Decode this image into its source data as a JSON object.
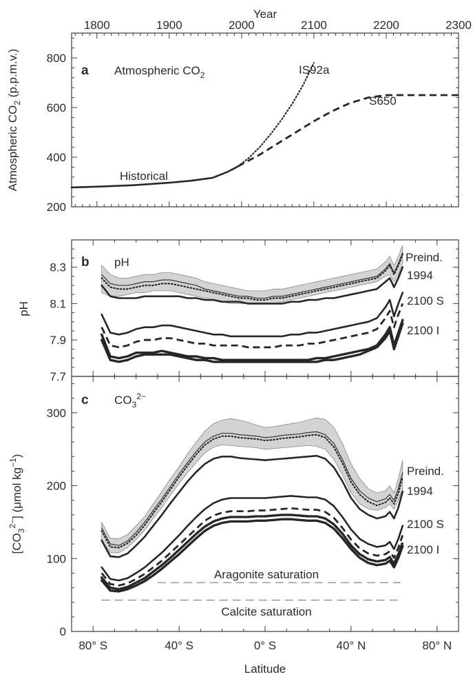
{
  "chart_data": [
    {
      "type": "line",
      "panel": "a",
      "title": "Atmospheric CO2",
      "xlabel": "Year",
      "ylabel": "Atmospheric CO2 (p.p.m.v.)",
      "xlim": [
        1765,
        2300
      ],
      "ylim": [
        200,
        900
      ],
      "xticks": [
        1800,
        1900,
        2000,
        2100,
        2200,
        2300
      ],
      "yticks": [
        200,
        400,
        600,
        800
      ],
      "grid": false,
      "series": [
        {
          "name": "Historical",
          "style": "solid",
          "x": [
            1765,
            1800,
            1850,
            1900,
            1930,
            1960,
            1980,
            1990,
            1995
          ],
          "y": [
            278,
            281,
            287,
            297,
            305,
            317,
            340,
            355,
            363
          ]
        },
        {
          "name": "IS92a",
          "style": "dotted",
          "x": [
            1995,
            2010,
            2025,
            2040,
            2055,
            2070,
            2085,
            2100
          ],
          "y": [
            363,
            397,
            440,
            492,
            550,
            615,
            690,
            780
          ]
        },
        {
          "name": "S650",
          "style": "dashed",
          "x": [
            1995,
            2025,
            2050,
            2075,
            2100,
            2125,
            2150,
            2175,
            2200,
            2300
          ],
          "y": [
            363,
            410,
            455,
            500,
            545,
            585,
            618,
            640,
            650,
            650
          ]
        }
      ]
    },
    {
      "type": "line",
      "panel": "b",
      "title": "pH",
      "xlabel": "",
      "ylabel": "pH",
      "xlim": [
        -90,
        90
      ],
      "ylim": [
        7.7,
        8.45
      ],
      "yticks": [
        7.7,
        7.9,
        8.1,
        8.3
      ],
      "grid": false,
      "x": [
        -76,
        -72,
        -68,
        -64,
        -60,
        -56,
        -52,
        -48,
        -44,
        -40,
        -36,
        -32,
        -28,
        -24,
        -20,
        -16,
        -12,
        -8,
        -4,
        0,
        4,
        8,
        12,
        16,
        20,
        24,
        28,
        32,
        36,
        40,
        44,
        48,
        52,
        56,
        58,
        60,
        62,
        64
      ],
      "band": {
        "lower": [
          8.16,
          8.14,
          8.14,
          8.15,
          8.16,
          8.16,
          8.17,
          8.17,
          8.17,
          8.16,
          8.15,
          8.14,
          8.13,
          8.12,
          8.11,
          8.1,
          8.1,
          8.1,
          8.1,
          8.1,
          8.1,
          8.11,
          8.12,
          8.13,
          8.14,
          8.15,
          8.16,
          8.17,
          8.18,
          8.19,
          8.2,
          8.21,
          8.22,
          8.25,
          8.26,
          8.22,
          8.26,
          8.32
        ],
        "upper": [
          8.31,
          8.26,
          8.24,
          8.24,
          8.25,
          8.26,
          8.26,
          8.27,
          8.27,
          8.26,
          8.25,
          8.24,
          8.22,
          8.21,
          8.2,
          8.19,
          8.18,
          8.17,
          8.17,
          8.17,
          8.18,
          8.18,
          8.19,
          8.2,
          8.21,
          8.22,
          8.23,
          8.24,
          8.25,
          8.26,
          8.27,
          8.28,
          8.29,
          8.33,
          8.36,
          8.31,
          8.36,
          8.42
        ]
      },
      "series": [
        {
          "name": "Preind.",
          "style": "solid-thin",
          "y": [
            8.26,
            8.21,
            8.2,
            8.2,
            8.21,
            8.22,
            8.22,
            8.23,
            8.23,
            8.22,
            8.21,
            8.2,
            8.18,
            8.17,
            8.16,
            8.15,
            8.14,
            8.14,
            8.13,
            8.13,
            8.14,
            8.14,
            8.15,
            8.16,
            8.17,
            8.18,
            8.19,
            8.2,
            8.21,
            8.22,
            8.23,
            8.24,
            8.25,
            8.29,
            8.32,
            8.27,
            8.32,
            8.38
          ]
        },
        {
          "name": "1994",
          "style": "dotted",
          "y": [
            8.24,
            8.19,
            8.18,
            8.18,
            8.19,
            8.2,
            8.2,
            8.21,
            8.21,
            8.2,
            8.19,
            8.18,
            8.17,
            8.16,
            8.15,
            8.14,
            8.13,
            8.13,
            8.12,
            8.12,
            8.13,
            8.13,
            8.14,
            8.15,
            8.16,
            8.17,
            8.18,
            8.19,
            8.2,
            8.21,
            8.22,
            8.23,
            8.24,
            8.28,
            8.31,
            8.26,
            8.31,
            8.37
          ]
        },
        {
          "name": "2100 S",
          "style": "solid",
          "y": [
            8.2,
            8.14,
            8.13,
            8.13,
            8.13,
            8.14,
            8.14,
            8.14,
            8.14,
            8.14,
            8.13,
            8.13,
            8.12,
            8.12,
            8.11,
            8.11,
            8.11,
            8.1,
            8.1,
            8.1,
            8.1,
            8.1,
            8.11,
            8.11,
            8.12,
            8.12,
            8.13,
            8.13,
            8.14,
            8.15,
            8.16,
            8.17,
            8.18,
            8.22,
            8.24,
            8.19,
            8.24,
            8.3
          ]
        },
        {
          "name": "2100 I",
          "style": "solid",
          "y": [
            8.04,
            7.94,
            7.93,
            7.94,
            7.96,
            7.97,
            7.97,
            7.98,
            7.98,
            7.97,
            7.96,
            7.95,
            7.94,
            7.93,
            7.93,
            7.92,
            7.92,
            7.92,
            7.92,
            7.92,
            7.92,
            7.92,
            7.93,
            7.93,
            7.94,
            7.94,
            7.95,
            7.96,
            7.97,
            7.98,
            7.99,
            8.0,
            8.02,
            8.08,
            8.12,
            8.03,
            8.1,
            8.16
          ]
        },
        {
          "name": "",
          "style": "dashed",
          "y": [
            7.97,
            7.87,
            7.86,
            7.87,
            7.89,
            7.9,
            7.9,
            7.91,
            7.91,
            7.9,
            7.89,
            7.88,
            7.88,
            7.87,
            7.87,
            7.87,
            7.87,
            7.86,
            7.86,
            7.86,
            7.86,
            7.87,
            7.87,
            7.87,
            7.88,
            7.88,
            7.89,
            7.9,
            7.91,
            7.92,
            7.93,
            7.94,
            7.96,
            8.02,
            8.06,
            7.97,
            8.04,
            8.1
          ]
        },
        {
          "name": "",
          "style": "solid-thick",
          "y": [
            7.93,
            7.81,
            7.8,
            7.81,
            7.83,
            7.83,
            7.83,
            7.84,
            7.83,
            7.82,
            7.81,
            7.81,
            7.8,
            7.8,
            7.79,
            7.79,
            7.79,
            7.79,
            7.79,
            7.79,
            7.79,
            7.79,
            7.79,
            7.79,
            7.79,
            7.8,
            7.8,
            7.81,
            7.82,
            7.83,
            7.84,
            7.85,
            7.87,
            7.93,
            7.97,
            7.87,
            7.94,
            8.01
          ]
        },
        {
          "name": "",
          "style": "dotted-thick",
          "y": [
            7.9,
            7.79,
            7.78,
            7.79,
            7.81,
            7.82,
            7.82,
            7.82,
            7.82,
            7.81,
            7.8,
            7.79,
            7.79,
            7.78,
            7.78,
            7.78,
            7.78,
            7.78,
            7.78,
            7.78,
            7.78,
            7.78,
            7.78,
            7.78,
            7.78,
            7.78,
            7.79,
            7.79,
            7.8,
            7.81,
            7.82,
            7.84,
            7.86,
            7.91,
            7.95,
            7.85,
            7.92,
            7.99
          ]
        }
      ]
    },
    {
      "type": "line",
      "panel": "c",
      "title": "CO3 2−",
      "xlabel": "Latitude",
      "ylabel": "[CO3 2−] (μmol kg−1)",
      "xlim": [
        -90,
        90
      ],
      "ylim": [
        0,
        350
      ],
      "xticks": [
        -80,
        -40,
        0,
        40,
        80
      ],
      "xticklabels": [
        "80° S",
        "40° S",
        "0° S",
        "40° N",
        "80° N"
      ],
      "yticks": [
        0,
        100,
        200,
        300
      ],
      "grid": false,
      "x": [
        -76,
        -72,
        -68,
        -64,
        -60,
        -56,
        -52,
        -48,
        -44,
        -40,
        -36,
        -32,
        -28,
        -24,
        -20,
        -16,
        -12,
        -8,
        -4,
        0,
        4,
        8,
        12,
        16,
        20,
        24,
        28,
        32,
        36,
        40,
        44,
        48,
        52,
        56,
        58,
        60,
        62,
        64
      ],
      "band": {
        "lower": [
          125,
          108,
          108,
          115,
          126,
          139,
          155,
          170,
          187,
          203,
          218,
          232,
          245,
          253,
          256,
          255,
          254,
          253,
          252,
          250,
          251,
          252,
          253,
          254,
          255,
          254,
          250,
          236,
          215,
          190,
          175,
          168,
          166,
          170,
          175,
          168,
          180,
          195
        ],
        "upper": [
          150,
          128,
          127,
          133,
          145,
          158,
          175,
          192,
          210,
          226,
          244,
          260,
          275,
          285,
          290,
          292,
          290,
          287,
          283,
          280,
          281,
          283,
          285,
          287,
          290,
          293,
          291,
          280,
          258,
          230,
          210,
          196,
          190,
          193,
          200,
          190,
          210,
          235
        ]
      },
      "series": [
        {
          "name": "Preind.",
          "style": "solid-thin",
          "y": [
            142,
            120,
            118,
            124,
            136,
            150,
            166,
            182,
            199,
            216,
            232,
            247,
            260,
            268,
            272,
            272,
            270,
            269,
            268,
            266,
            267,
            269,
            270,
            271,
            273,
            274,
            270,
            258,
            236,
            210,
            193,
            183,
            178,
            182,
            188,
            180,
            196,
            218
          ]
        },
        {
          "name": "1994",
          "style": "dotted",
          "y": [
            138,
            116,
            115,
            121,
            132,
            146,
            162,
            178,
            195,
            212,
            228,
            243,
            256,
            264,
            268,
            268,
            266,
            265,
            264,
            262,
            263,
            265,
            266,
            267,
            269,
            270,
            266,
            253,
            231,
            205,
            188,
            178,
            173,
            177,
            183,
            175,
            190,
            212
          ]
        },
        {
          "name": "2100 S",
          "style": "solid",
          "y": [
            125,
            103,
            102,
            107,
            118,
            130,
            145,
            160,
            176,
            191,
            206,
            219,
            230,
            237,
            240,
            240,
            238,
            237,
            236,
            235,
            236,
            237,
            238,
            239,
            240,
            241,
            237,
            225,
            206,
            183,
            168,
            160,
            155,
            158,
            164,
            155,
            170,
            192
          ]
        },
        {
          "name": "2100 I",
          "style": "solid",
          "y": [
            88,
            72,
            70,
            73,
            80,
            88,
            98,
            108,
            120,
            132,
            145,
            157,
            168,
            176,
            181,
            183,
            183,
            183,
            183,
            183,
            184,
            185,
            186,
            185,
            184,
            184,
            181,
            172,
            157,
            140,
            127,
            120,
            116,
            118,
            123,
            113,
            127,
            145
          ]
        },
        {
          "name": "",
          "style": "dashed",
          "y": [
            80,
            65,
            63,
            66,
            72,
            79,
            88,
            97,
            108,
            119,
            130,
            141,
            152,
            159,
            163,
            165,
            165,
            165,
            166,
            166,
            167,
            168,
            169,
            168,
            167,
            167,
            164,
            156,
            142,
            126,
            114,
            107,
            104,
            106,
            110,
            101,
            115,
            132
          ]
        },
        {
          "name": "",
          "style": "dotted-thick",
          "y": [
            74,
            60,
            58,
            61,
            67,
            73,
            82,
            91,
            101,
            112,
            123,
            134,
            144,
            151,
            155,
            157,
            157,
            157,
            158,
            158,
            159,
            160,
            160,
            159,
            158,
            158,
            155,
            147,
            134,
            118,
            106,
            99,
            96,
            98,
            102,
            93,
            106,
            122
          ]
        },
        {
          "name": "",
          "style": "solid-thick",
          "y": [
            70,
            56,
            55,
            58,
            63,
            69,
            77,
            86,
            96,
            106,
            117,
            128,
            138,
            145,
            149,
            151,
            151,
            151,
            152,
            152,
            153,
            154,
            154,
            153,
            152,
            152,
            149,
            141,
            128,
            113,
            101,
            94,
            91,
            93,
            97,
            88,
            101,
            117
          ]
        }
      ],
      "reference_lines": [
        {
          "label": "Aragonite saturation",
          "x": [
            -50,
            63
          ],
          "y": [
            67,
            67
          ]
        },
        {
          "label": "Calcite saturation",
          "x": [
            -76,
            63
          ],
          "y": [
            43,
            43
          ]
        }
      ]
    }
  ],
  "panels": {
    "a": {
      "letter": "a",
      "title_main": "Atmospheric CO",
      "title_sub": "2",
      "ylabel_main": "Atmospheric CO",
      "ylabel_sub": "2",
      "ylabel_tail": " (p.p.m.v.)",
      "xlabel": "Year",
      "labels": {
        "historical": "Historical",
        "is92a": "IS92a",
        "s650": "S650"
      }
    },
    "b": {
      "letter": "b",
      "title": "pH",
      "ylabel": "pH",
      "labels": {
        "preind": "Preind.",
        "y1994": "1994",
        "s2100": "2100 S",
        "i2100": "2100 I"
      }
    },
    "c": {
      "letter": "c",
      "title_main": "CO",
      "title_sub": "3",
      "title_sup": "2−",
      "ylabel_open": "[CO",
      "ylabel_sub": "3",
      "ylabel_sup": "2−",
      "ylabel_mid": "] (μmol kg",
      "ylabel_sup2": "−1",
      "ylabel_close": ")",
      "xlabel": "Latitude",
      "labels": {
        "preind": "Preind.",
        "y1994": "1994",
        "s2100": "2100 S",
        "i2100": "2100 I",
        "aragonite": "Aragonite saturation",
        "calcite": "Calcite saturation"
      }
    }
  }
}
